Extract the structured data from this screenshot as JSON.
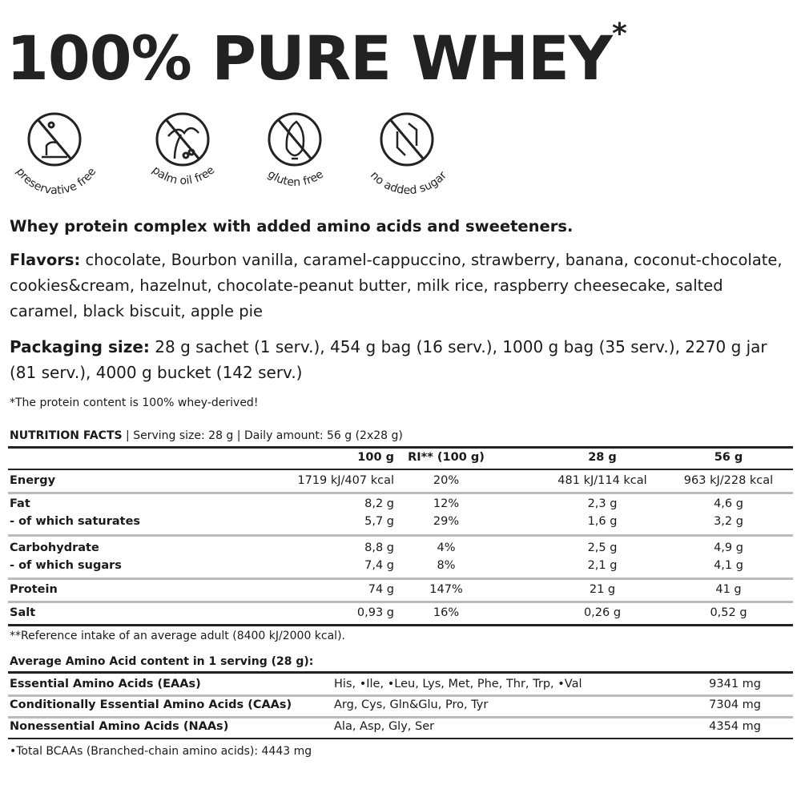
{
  "title": {
    "text": "100% PURE WHEY",
    "mark": "*"
  },
  "badges": [
    {
      "label": "preservative free",
      "icon": "no-preservative-icon"
    },
    {
      "label": "palm oil free",
      "icon": "no-palm-oil-icon"
    },
    {
      "label": "gluten free",
      "icon": "no-gluten-icon"
    },
    {
      "label": "no added sugar",
      "icon": "no-sugar-icon"
    }
  ],
  "subtitle": "Whey protein complex with added amino acids and sweeteners.",
  "flavors": {
    "label": "Flavors:",
    "text": " chocolate, Bourbon vanilla, caramel-cappuccino, strawberry, banana, coconut-chocolate, cookies&cream, hazelnut, chocolate-peanut butter, milk rice, raspberry cheesecake, salted caramel, black biscuit, apple pie"
  },
  "packaging": {
    "label": "Packaging size:",
    "text": " 28 g sachet (1 serv.), 454 g bag (16 serv.), 1000 g bag (35 serv.), 2270 g jar (81 serv.), 4000 g bucket (142 serv.)"
  },
  "protein_note": "*The protein content is 100% whey-derived!",
  "nutrition": {
    "title": "NUTRITION FACTS",
    "serving": "Serving size: 28 g",
    "daily": "Daily amount: 56 g (2x28 g)",
    "columns": [
      "",
      "100 g",
      "RI** (100 g)",
      "28 g",
      "56 g"
    ],
    "rows": [
      [
        "Energy",
        "1719 kJ/407 kcal",
        "20%",
        "481 kJ/114 kcal",
        "963 kJ/228 kcal"
      ],
      [
        "Fat",
        "8,2 g",
        "12%",
        "2,3 g",
        "4,6 g"
      ],
      [
        "- of which saturates",
        "5,7 g",
        "29%",
        "1,6 g",
        "3,2 g"
      ],
      [
        "Carbohydrate",
        "8,8 g",
        "4%",
        "2,5 g",
        "4,9 g"
      ],
      [
        "- of which sugars",
        "7,4 g",
        "8%",
        "2,1 g",
        "4,1 g"
      ],
      [
        "Protein",
        "74 g",
        "147%",
        "21 g",
        "41 g"
      ],
      [
        "Salt",
        "0,93 g",
        "16%",
        "0,26 g",
        "0,52 g"
      ]
    ],
    "footnote": "**Reference intake of an average adult (8400 kJ/2000 kcal)."
  },
  "amino": {
    "title": "Average Amino Acid content in 1 serving (28 g):",
    "rows": [
      [
        "Essential Amino Acids (EAAs)",
        "His, •Ile, •Leu, Lys, Met, Phe, Thr, Trp, •Val",
        "9341 mg"
      ],
      [
        "Conditionally Essential Amino Acids (CAAs)",
        "Arg, Cys, Gln&Glu, Pro, Tyr",
        "7304 mg"
      ],
      [
        "Nonessential Amino Acids (NAAs)",
        "Ala, Asp, Gly, Ser",
        "4354 mg"
      ]
    ],
    "footnote": "•Total BCAAs (Branched-chain amino acids): 4443 mg"
  }
}
